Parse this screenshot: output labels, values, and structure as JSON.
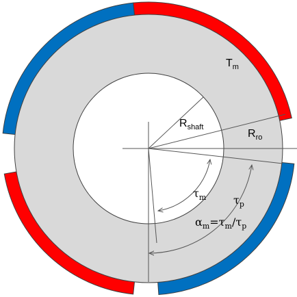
{
  "diagram": {
    "colors": {
      "rotor_core": "#d9d9d9",
      "shaft": "#ffffff",
      "magnet_north": "#ff0000",
      "magnet_south": "#0070c0",
      "outline": "#404040",
      "lines": "#555555"
    },
    "labels": {
      "magnet_thickness": {
        "main": "T",
        "sub": "m"
      },
      "shaft_radius": {
        "main": "R",
        "sub": "shaft"
      },
      "rotor_outer_radius": {
        "main": "R",
        "sub": "ro"
      },
      "magnet_pitch": {
        "main": "τ",
        "sub": "m"
      },
      "pole_pitch": {
        "main": "τ",
        "sub": "p"
      },
      "pole_arc_ratio": {
        "alpha": "α",
        "alpha_sub": "m",
        "eq": "=",
        "tau_m": "τ",
        "tau_m_sub": "m",
        "slash": "/",
        "tau_p": "τ",
        "tau_p_sub": "p"
      }
    }
  }
}
